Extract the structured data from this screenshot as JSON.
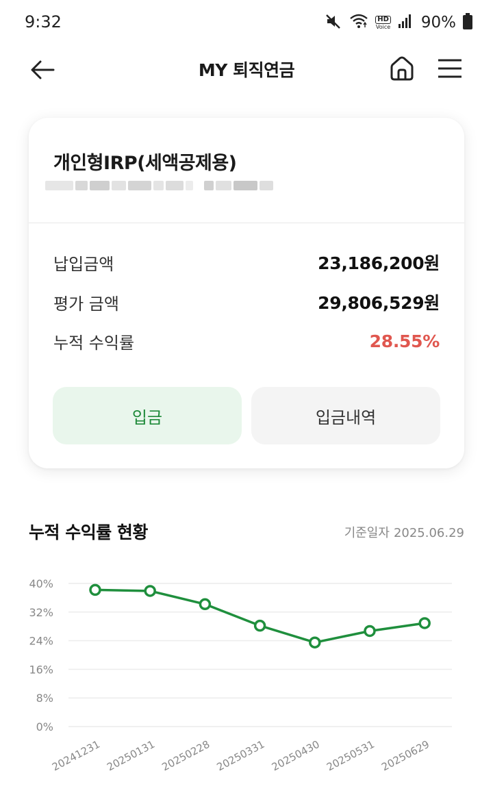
{
  "status_bar": {
    "time": "9:32",
    "battery": "90%",
    "hd_label": "HD",
    "voice_label": "Voice",
    "icons": [
      "mute-icon",
      "wifi-icon",
      "hd-voice-icon",
      "signal-icon",
      "battery-icon"
    ]
  },
  "header": {
    "title": "MY 퇴직연금",
    "icons": [
      "back-arrow-icon",
      "home-icon",
      "hamburger-menu-icon"
    ]
  },
  "account": {
    "name": "개인형IRP(세액공제용)",
    "rows": [
      {
        "label": "납입금액",
        "value": "23,186,200원"
      },
      {
        "label": "평가 금액",
        "value": "29,806,529원"
      },
      {
        "label": "누적 수익률",
        "value": "28.55%"
      }
    ],
    "deposit_button": "입금",
    "history_button": "입금내역",
    "colors": {
      "rate": "#e0574f",
      "deposit_bg": "#e9f6ec",
      "deposit_text": "#1f8a3a"
    }
  },
  "chart_section": {
    "title": "누적 수익률 현황",
    "base_date_label": "기준일자",
    "base_date_value": "2025.06.29"
  },
  "chart_data": {
    "type": "line",
    "x": [
      "20241231",
      "20250131",
      "20250228",
      "20250331",
      "20250430",
      "20250531",
      "20250629"
    ],
    "series": [
      {
        "values": [
          38.2,
          37.9,
          34.2,
          28.2,
          23.5,
          26.7,
          28.9
        ]
      }
    ],
    "yticks": [
      "40%",
      "32%",
      "24%",
      "16%",
      "8%",
      "0%"
    ],
    "ylim": [
      0,
      40
    ],
    "grid": true,
    "line_color": "#1f8f3d"
  }
}
